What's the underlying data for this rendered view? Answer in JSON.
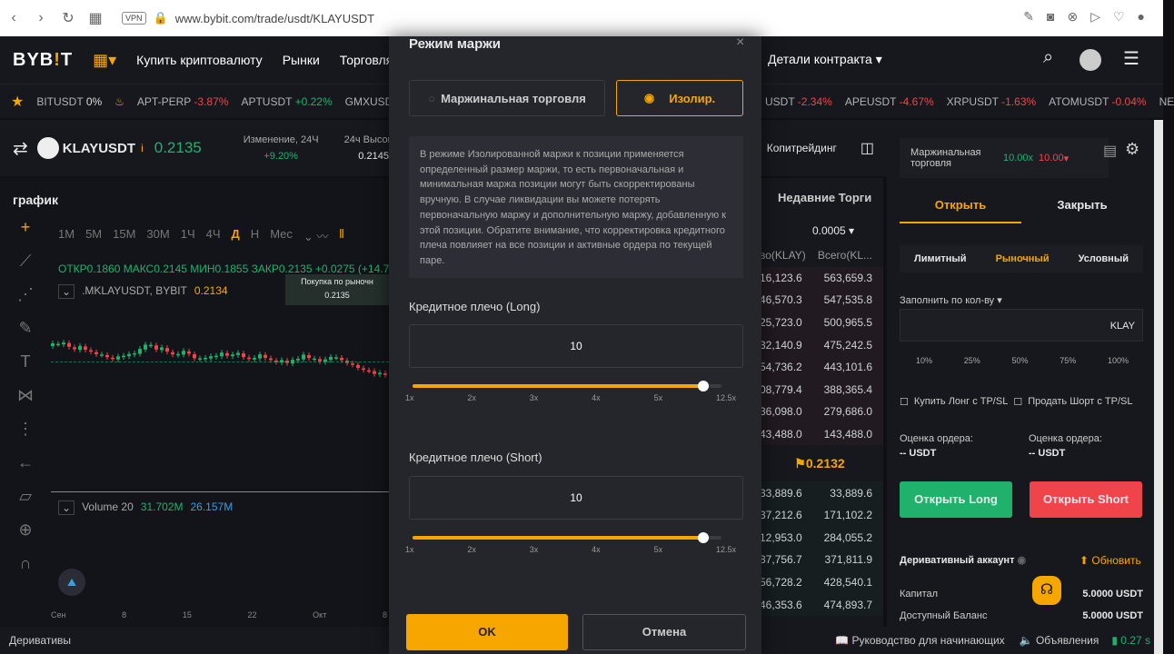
{
  "browser": {
    "url": "www.bybit.com/trade/usdt/KLAYUSDT",
    "vpn": "VPN"
  },
  "nav": {
    "logo_a": "BYB",
    "logo_b": "!",
    "logo_c": "T",
    "items": [
      "Купить криптовалюту",
      "Рынки",
      "Торговля",
      "Детали контракта"
    ]
  },
  "ticker": [
    {
      "sym": "BITUSDT",
      "chg": "0%",
      "c": ""
    },
    {
      "sym": "APT-PERP",
      "chg": "-3.87%",
      "c": "r"
    },
    {
      "sym": "APTUSDT",
      "chg": "+0.22%",
      "c": "g"
    },
    {
      "sym": "GMXUSDT",
      "chg": "",
      "c": ""
    }
  ],
  "ticker_right": [
    {
      "sym": "USDT",
      "chg": "-2.34%"
    },
    {
      "sym": "APEUSDT",
      "chg": "-4.67%"
    },
    {
      "sym": "XRPUSDT",
      "chg": "-1.63%"
    },
    {
      "sym": "ATOMUSDT",
      "chg": "-0.04%"
    },
    {
      "sym": "NE",
      "chg": ""
    }
  ],
  "symbol": {
    "name": "KLAYUSDT",
    "price": "0.2135",
    "change_label": "Изменение, 24Ч",
    "change": "+9.20%",
    "high_label": "24ч Высокий",
    "high": "0.2145",
    "copytrading": "Копитрейдинг"
  },
  "chart": {
    "title": "график",
    "timeframes": [
      "1М",
      "5М",
      "15М",
      "30М",
      "1Ч",
      "4Ч",
      "Д",
      "Н",
      "Мес"
    ],
    "active_tf": "Д",
    "ohlc": "ОТКР0.1860 МАКС0.2145 МИН0.1855 ЗАКР0.2135 +0.0275 (+14.7",
    "mark_label": ".MKLAYUSDT, BYBIT",
    "mark_value": "0.2134",
    "tooltip_label": "Покупка по рыночн",
    "tooltip_value": "0.2135",
    "volume_label": "Volume 20",
    "vol1": "31.702M",
    "vol2": "26.157M",
    "xaxis": [
      "Сен",
      "8",
      "15",
      "22",
      "Окт",
      "8"
    ]
  },
  "orderbook": {
    "title": "Недавние Торги",
    "step": "0.0005",
    "col1": "во(KLAY)",
    "col2": "Всего(KL...",
    "asks": [
      [
        "16,123.6",
        "563,659.3"
      ],
      [
        "46,570.3",
        "547,535.8"
      ],
      [
        "25,723.0",
        "500,965.5"
      ],
      [
        "32,140.9",
        "475,242.5"
      ],
      [
        "54,736.2",
        "443,101.6"
      ],
      [
        "08,779.4",
        "388,365.4"
      ],
      [
        "36,098.0",
        "279,686.0"
      ],
      [
        "43,488.0",
        "143,488.0"
      ]
    ],
    "last": "0.2132",
    "bids": [
      [
        "33,889.6",
        "33,889.6"
      ],
      [
        "37,212.6",
        "171,102.2"
      ],
      [
        "12,953.0",
        "284,055.2"
      ],
      [
        "87,756.7",
        "371,811.9"
      ],
      [
        "56,728.2",
        "428,540.1"
      ],
      [
        "46,353.6",
        "474,893.7"
      ]
    ]
  },
  "order": {
    "margin_mode": "Маржинальная торговля",
    "lev_long": "10.00x",
    "lev_short": "10.00",
    "tab_open": "Открыть",
    "tab_close": "Закрыть",
    "types": [
      "Лимитный",
      "Рыночный",
      "Условный"
    ],
    "qty_label": "Заполнить по кол-ву",
    "qty_unit": "KLAY",
    "pcts": [
      "10%",
      "25%",
      "50%",
      "75%",
      "100%"
    ],
    "tpsl_long": "Купить Лонг с TP/SL",
    "tpsl_short": "Продать Шорт с TP/SL",
    "est_label": "Оценка ордера:",
    "est_value": "-- USDT",
    "open_long": "Открыть Long",
    "open_short": "Открыть Short",
    "account": "Деривативный аккаунт",
    "refresh": "Обновить",
    "equity_label": "Капитал",
    "equity": "5.0000 USDT",
    "avail_label": "Доступный Баланс",
    "avail": "5.0000 USDT"
  },
  "status": {
    "left": "Деривативы",
    "guide": "Руководство для начинающих",
    "news": "Объявления",
    "latency": "0.27 s"
  },
  "modal": {
    "title": "Режим маржи",
    "cross": "Маржинальная торговля",
    "isolated": "Изолир.",
    "desc": "В режиме Изолированной маржи к позиции применяется определенный размер маржи, то есть первоначальная и минимальная маржа позиции могут быть скорректированы вручную. В случае ликвидации вы можете потерять первоначальную маржу и дополнительную маржу, добавленную к этой позиции. Обратите внимание, что корректировка кредитного плеча повлияет на все позиции и активные ордера по текущей паре.",
    "long_label": "Кредитное плечо (Long)",
    "long_value": "10",
    "short_label": "Кредитное плечо (Short)",
    "short_value": "10",
    "ticks": [
      "1x",
      "2x",
      "3x",
      "4x",
      "5x",
      "12.5x"
    ],
    "long_fill": 0.94,
    "short_fill": 0.94,
    "ok": "OK",
    "cancel": "Отмена"
  }
}
